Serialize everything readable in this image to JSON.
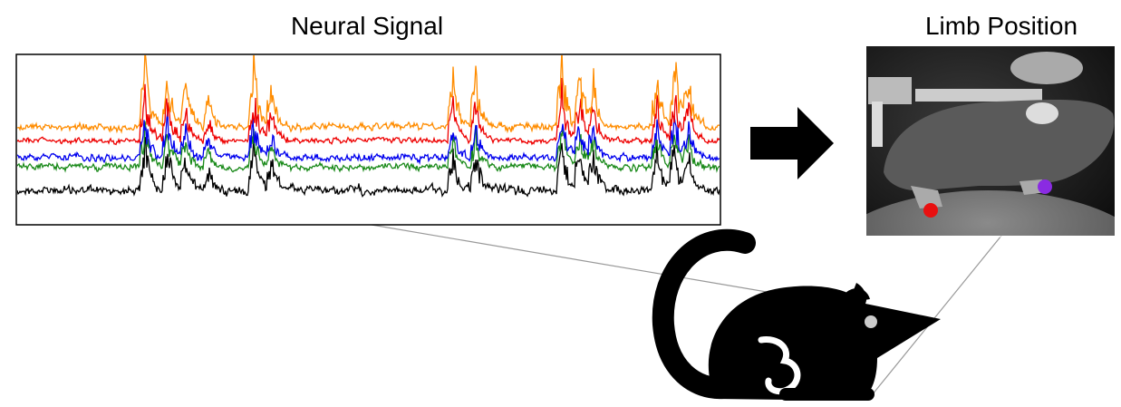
{
  "panels": [
    {
      "title": "Neural Signal"
    },
    {
      "title": "Limb Position"
    }
  ]
}
